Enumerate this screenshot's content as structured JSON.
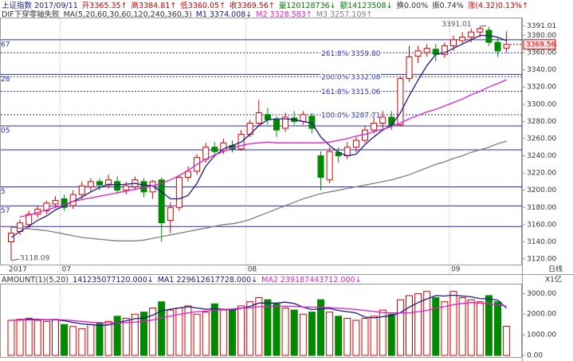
{
  "chart_data": [
    {
      "type": "candlestick",
      "title": "上证指数 2017/09/11",
      "quote": [
        {
          "text": "开3365.35↑",
          "color": "#d00000"
        },
        {
          "text": "高3384.81↑",
          "color": "#d00000"
        },
        {
          "text": "低3360.05↑",
          "color": "#d00000"
        },
        {
          "text": "收3369.56↑",
          "color": "#d00000"
        },
        {
          "text": "量120128736↓",
          "color": "#008000"
        },
        {
          "text": "额14123508↓",
          "color": "#008000"
        },
        {
          "text": "换0.00%",
          "color": "#333333"
        },
        {
          "text": "振0.74%",
          "color": "#333333"
        },
        {
          "text": "涨(4.32)0.13%↑",
          "color": "#d00000"
        }
      ],
      "notes": [
        {
          "text": "DIF下穿零轴失败",
          "color": "#333333"
        },
        {
          "text": "MA(5,20,60,30,60,120,240,360,3)",
          "color": "#333333"
        }
      ],
      "period": "日线",
      "categories": [
        "2017",
        null,
        null,
        null,
        null,
        null,
        "07",
        null,
        null,
        null,
        null,
        null,
        null,
        null,
        null,
        null,
        null,
        null,
        null,
        null,
        null,
        null,
        null,
        null,
        null,
        null,
        null,
        "08",
        null,
        null,
        null,
        null,
        null,
        null,
        null,
        null,
        null,
        null,
        null,
        null,
        null,
        null,
        null,
        null,
        null,
        null,
        null,
        null,
        null,
        null,
        "09",
        null,
        null,
        null,
        null,
        null,
        null
      ],
      "open": [
        3140,
        3152,
        3160,
        3172,
        3176,
        3184,
        3190,
        3182,
        3195,
        3204,
        3210,
        3206,
        3210,
        3200,
        3204,
        3210,
        3198,
        3212,
        3165,
        3180,
        3215,
        3222,
        3236,
        3250,
        3246,
        3252,
        3248,
        3265,
        3278,
        3288,
        3282,
        3272,
        3284,
        3280,
        3286,
        3240,
        3212,
        3244,
        3240,
        3250,
        3258,
        3270,
        3278,
        3285,
        3276,
        3330,
        3356,
        3360,
        3364,
        3358,
        3368,
        3374,
        3378,
        3384,
        3386,
        3372,
        3365.35
      ],
      "close": [
        3150,
        3162,
        3172,
        3178,
        3185,
        3188,
        3180,
        3195,
        3205,
        3210,
        3206,
        3212,
        3200,
        3205,
        3212,
        3198,
        3210,
        3162,
        3180,
        3215,
        3222,
        3238,
        3250,
        3245,
        3255,
        3248,
        3265,
        3278,
        3290,
        3282,
        3270,
        3285,
        3280,
        3288,
        3272,
        3215,
        3245,
        3240,
        3250,
        3258,
        3270,
        3278,
        3285,
        3276,
        3330,
        3355,
        3362,
        3365,
        3358,
        3368,
        3375,
        3378,
        3384,
        3388,
        3372,
        3362,
        3369.56
      ],
      "high": [
        3158,
        3166,
        3176,
        3182,
        3188,
        3193,
        3195,
        3200,
        3210,
        3214,
        3214,
        3218,
        3216,
        3210,
        3216,
        3214,
        3212,
        3215,
        3186,
        3218,
        3228,
        3242,
        3255,
        3256,
        3260,
        3258,
        3270,
        3282,
        3305,
        3296,
        3286,
        3290,
        3292,
        3292,
        3290,
        3245,
        3250,
        3250,
        3256,
        3262,
        3275,
        3285,
        3292,
        3292,
        3332,
        3368,
        3368,
        3370,
        3370,
        3372,
        3380,
        3384,
        3388,
        3391.01,
        3390,
        3378,
        3384.81
      ],
      "low": [
        3118.09,
        3148,
        3156,
        3168,
        3172,
        3180,
        3176,
        3178,
        3190,
        3198,
        3200,
        3202,
        3196,
        3195,
        3200,
        3192,
        3190,
        3140,
        3150,
        3176,
        3210,
        3218,
        3232,
        3240,
        3242,
        3244,
        3246,
        3262,
        3275,
        3276,
        3262,
        3268,
        3276,
        3276,
        3266,
        3200,
        3208,
        3232,
        3236,
        3244,
        3255,
        3266,
        3272,
        3270,
        3274,
        3326,
        3348,
        3355,
        3350,
        3354,
        3362,
        3370,
        3372,
        3378,
        3368,
        3355,
        3360.05
      ],
      "up_color": "#e00000",
      "down_color": "#008a00",
      "series": [
        {
          "name": "M1 3374.008↓",
          "color": "#1a1a8c",
          "values": [
            3145,
            3152,
            3158,
            3165,
            3170,
            3177,
            3182,
            3187,
            3192,
            3198,
            3203,
            3207,
            3206,
            3207,
            3208,
            3206,
            3205,
            3198,
            3190,
            3190,
            3194,
            3208,
            3228,
            3240,
            3248,
            3252,
            3256,
            3265,
            3275,
            3282,
            3283,
            3283,
            3282,
            3280,
            3278,
            3262,
            3252,
            3244,
            3240,
            3242,
            3253,
            3262,
            3270,
            3276,
            3290,
            3310,
            3328,
            3345,
            3358,
            3360,
            3365,
            3370,
            3375,
            3380,
            3380,
            3378,
            3374.008
          ]
        },
        {
          "name": "M2 3328.583↑",
          "color": "#e020d0",
          "values": [
            null,
            3169,
            3171,
            3174,
            3177,
            3180,
            3183,
            3187,
            3189,
            3191,
            3193,
            3195,
            3197,
            3199,
            3201,
            3203,
            3205,
            3208,
            3212,
            3217,
            3223,
            3230,
            3236,
            3241,
            3245,
            3249,
            3252,
            3254,
            3255,
            3256,
            3255,
            3255,
            3255,
            3255,
            3255,
            3255,
            3256,
            3258,
            3260,
            3263,
            3265,
            3268,
            3271,
            3274,
            3278,
            3283,
            3287,
            3291,
            3294,
            3298,
            3302,
            3306,
            3311,
            3315,
            3320,
            3324,
            3328.583
          ]
        },
        {
          "name": "M3 3257.109↑",
          "color": "#808080",
          "values": [
            3157,
            3156,
            3155,
            3154,
            3153,
            3151,
            3149,
            3147,
            3145,
            3144,
            3143,
            3142,
            3141,
            3141,
            3141,
            3142,
            3144,
            3146,
            3148,
            3150,
            3152,
            3154,
            3156,
            3158,
            3160,
            3161,
            3163,
            3166,
            3170,
            3174,
            3178,
            3182,
            3186,
            3190,
            3193,
            3196,
            3198,
            3200,
            3202,
            3204,
            3206,
            3208,
            3210,
            3212,
            3215,
            3218,
            3222,
            3226,
            3230,
            3233,
            3237,
            3240,
            3244,
            3247,
            3250,
            3254,
            3257.109
          ]
        }
      ],
      "ylim": [
        3113.5,
        3399
      ],
      "yticks": [
        3391.01,
        {
          "value": 3380,
          "label": "3380.00"
        },
        {
          "value": 3360,
          "label": "3360.00"
        },
        {
          "value": 3340,
          "label": "3340.00"
        },
        {
          "value": 3320,
          "label": "3320.00"
        },
        {
          "value": 3300,
          "label": "3300.00"
        },
        {
          "value": 3280,
          "label": "3280.00"
        },
        {
          "value": 3260,
          "label": "3260.00"
        },
        {
          "value": 3240,
          "label": "3240.00"
        },
        {
          "value": 3220,
          "label": "3220.00"
        },
        {
          "value": 3200,
          "label": "3200.00"
        },
        {
          "value": 3180,
          "label": "3180.00"
        },
        {
          "value": 3160,
          "label": "3160.00"
        },
        {
          "value": 3140,
          "label": "3140.00"
        },
        {
          "value": 3120,
          "label": "3120.00"
        }
      ],
      "last_price": 3369.56,
      "max_label": 3391.01,
      "min_label": 3118.09,
      "fib_levels": [
        {
          "value": 3359.8,
          "label": "261.8% 3359.80"
        },
        {
          "value": 3332.08,
          "label": "200.0% 3332.08"
        },
        {
          "value": 3315.06,
          "label": "161.8% 3315.06"
        },
        {
          "value": 3287.71,
          "label": "100.0% 3287.71"
        }
      ],
      "levels": [
        {
          "value": 3375,
          "label": "67"
        },
        {
          "value": 3334.7,
          "label": "28"
        },
        {
          "value": 3274.8,
          "label": "05"
        },
        {
          "value": 3247
        },
        {
          "value": 3203.9,
          "label": "5"
        },
        {
          "value": 3181.8,
          "label": "57"
        },
        {
          "value": 3157.8
        }
      ]
    },
    {
      "type": "bar",
      "title": "AMOUNT(1)(5,20)",
      "current": {
        "text": "141235077120.000↓",
        "color": "#1a1a8c"
      },
      "unit": "X1亿",
      "values": [
        1700,
        1750,
        1800,
        1700,
        1650,
        1750,
        1500,
        1400,
        1300,
        1500,
        1550,
        1650,
        1900,
        1800,
        2000,
        2100,
        2300,
        2600,
        2200,
        2300,
        2400,
        2000,
        2100,
        2500,
        2200,
        2200,
        2400,
        2600,
        2800,
        2700,
        2500,
        2300,
        2200,
        2000,
        2100,
        2700,
        2100,
        1900,
        1800,
        1700,
        1800,
        1900,
        2200,
        2000,
        2700,
        2900,
        3000,
        3100,
        2800,
        2600,
        3100,
        2800,
        2700,
        2600,
        2900,
        2600,
        1412.35
      ],
      "series": [
        {
          "name": "MA1 229612617728.000↓",
          "color": "#1a1a8c",
          "values": [
            1700,
            1720,
            1750,
            1750,
            1730,
            1730,
            1680,
            1600,
            1530,
            1490,
            1450,
            1480,
            1580,
            1680,
            1780,
            1810,
            1950,
            2160,
            2240,
            2300,
            2360,
            2300,
            2240,
            2260,
            2240,
            2200,
            2280,
            2380,
            2540,
            2540,
            2540,
            2580,
            2520,
            2340,
            2220,
            2260,
            2280,
            2180,
            2120,
            2060,
            1860,
            1820,
            1880,
            1920,
            2080,
            2340,
            2560,
            2740,
            2900,
            2880,
            2920,
            2880,
            2840,
            2760,
            2740,
            2680,
            2296.13
          ]
        },
        {
          "name": "MA2 239187443712.000↓",
          "color": "#e020d0",
          "values": [
            1700,
            1710,
            1720,
            1730,
            1740,
            1740,
            1720,
            1690,
            1650,
            1610,
            1590,
            1580,
            1580,
            1590,
            1620,
            1650,
            1720,
            1820,
            1910,
            1990,
            2060,
            2120,
            2150,
            2200,
            2230,
            2250,
            2290,
            2310,
            2360,
            2370,
            2380,
            2390,
            2380,
            2350,
            2340,
            2330,
            2320,
            2290,
            2260,
            2230,
            2180,
            2130,
            2080,
            2060,
            2060,
            2060,
            2120,
            2180,
            2290,
            2370,
            2460,
            2520,
            2560,
            2540,
            2500,
            2450,
            2391.87
          ]
        }
      ],
      "ylim": [
        0,
        3400
      ],
      "yticks": [
        {
          "value": 3000,
          "label": "3000.00"
        },
        {
          "value": 2000,
          "label": "2000.00"
        },
        {
          "value": 1000,
          "label": "1000.00"
        },
        {
          "value": 0,
          "label": "0.00"
        }
      ]
    }
  ]
}
